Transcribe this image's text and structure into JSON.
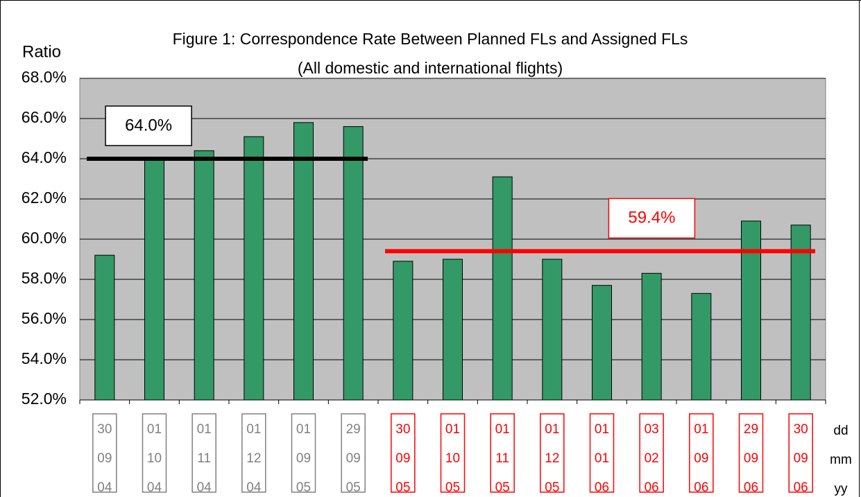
{
  "chart_data": {
    "type": "bar",
    "title": "Figure 1: Correspondence Rate Between Planned FLs and Assigned FLs",
    "subtitle": "(All domestic and international flights)",
    "y_label": "Ratio",
    "categories": [
      [
        "30",
        "09",
        "04"
      ],
      [
        "01",
        "10",
        "04"
      ],
      [
        "01",
        "11",
        "04"
      ],
      [
        "01",
        "12",
        "04"
      ],
      [
        "01",
        "09",
        "05"
      ],
      [
        "29",
        "09",
        "05"
      ],
      [
        "30",
        "09",
        "05"
      ],
      [
        "01",
        "10",
        "05"
      ],
      [
        "01",
        "11",
        "05"
      ],
      [
        "01",
        "12",
        "05"
      ],
      [
        "01",
        "01",
        "06"
      ],
      [
        "03",
        "02",
        "06"
      ],
      [
        "01",
        "09",
        "06"
      ],
      [
        "29",
        "09",
        "06"
      ],
      [
        "30",
        "09",
        "06"
      ]
    ],
    "label_colors": [
      "#808080",
      "#808080",
      "#808080",
      "#808080",
      "#808080",
      "#808080",
      "#ff0000",
      "#ff0000",
      "#ff0000",
      "#ff0000",
      "#ff0000",
      "#ff0000",
      "#ff0000",
      "#ff0000",
      "#ff0000"
    ],
    "row_labels": [
      "dd",
      "mm",
      "yy"
    ],
    "values": [
      59.2,
      64.0,
      64.4,
      65.1,
      65.8,
      65.6,
      58.9,
      59.0,
      63.1,
      59.0,
      57.7,
      58.3,
      57.3,
      60.9,
      60.7
    ],
    "color": "#339966",
    "background": "#c0c0c0",
    "ylim": [
      52,
      68
    ],
    "yticks": [
      {
        "value": 52,
        "label": "52.0%"
      },
      {
        "value": 54,
        "label": "54.0%"
      },
      {
        "value": 56,
        "label": "56.0%"
      },
      {
        "value": 58,
        "label": "58.0%"
      },
      {
        "value": 60,
        "label": "60.0%"
      },
      {
        "value": 62,
        "label": "62.0%"
      },
      {
        "value": 64,
        "label": "64.0%"
      },
      {
        "value": 66,
        "label": "66.0%"
      },
      {
        "value": 68,
        "label": "68.0%"
      }
    ],
    "grid": true,
    "reference_lines": [
      {
        "value": 64.0,
        "label": "64.0%",
        "color": "#000000",
        "from": 0,
        "to": 5
      },
      {
        "value": 59.4,
        "label": "59.4%",
        "color": "#ff0000",
        "from": 6,
        "to": 14
      }
    ]
  }
}
